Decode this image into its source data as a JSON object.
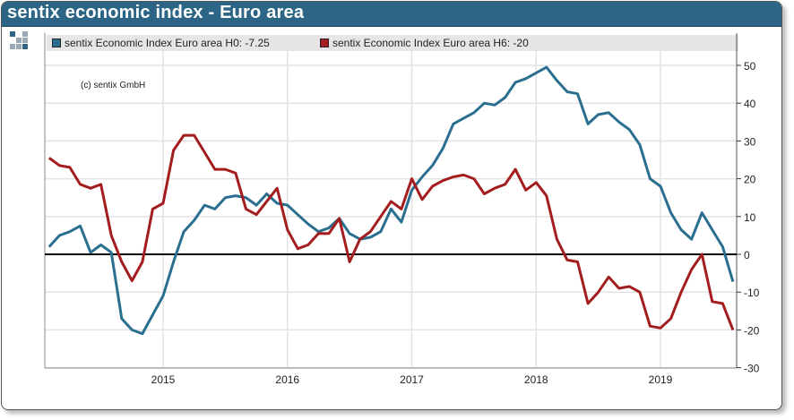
{
  "header": {
    "title": "sentix economic index - Euro area"
  },
  "copyright": "(c) sentix GmbH",
  "logo": {
    "colors": [
      "#2c6586",
      "#9aa9b5"
    ]
  },
  "colors": {
    "title_bar": "#2c6586",
    "h0": "#2a6f8f",
    "h6": "#a31d1f"
  },
  "chart_data": {
    "type": "line",
    "legend_placement": "top",
    "grid": true,
    "ylim": [
      -30,
      55
    ],
    "y_ticks": [
      "50",
      "40",
      "30",
      "20",
      "10",
      "0",
      "-10",
      "-20",
      "-30"
    ],
    "x_ticks": [
      "2015",
      "2016",
      "2017",
      "2018",
      "2019"
    ],
    "x": [
      "2014-02",
      "2014-03",
      "2014-04",
      "2014-05",
      "2014-06",
      "2014-07",
      "2014-08",
      "2014-09",
      "2014-10",
      "2014-11",
      "2014-12",
      "2015-01",
      "2015-02",
      "2015-03",
      "2015-04",
      "2015-05",
      "2015-06",
      "2015-07",
      "2015-08",
      "2015-09",
      "2015-10",
      "2015-11",
      "2015-12",
      "2016-01",
      "2016-02",
      "2016-03",
      "2016-04",
      "2016-05",
      "2016-06",
      "2016-07",
      "2016-08",
      "2016-09",
      "2016-10",
      "2016-11",
      "2016-12",
      "2017-01",
      "2017-02",
      "2017-03",
      "2017-04",
      "2017-05",
      "2017-06",
      "2017-07",
      "2017-08",
      "2017-09",
      "2017-10",
      "2017-11",
      "2017-12",
      "2018-01",
      "2018-02",
      "2018-03",
      "2018-04",
      "2018-05",
      "2018-06",
      "2018-07",
      "2018-08",
      "2018-09",
      "2018-10",
      "2018-11",
      "2018-12",
      "2019-01",
      "2019-02",
      "2019-03",
      "2019-04",
      "2019-05",
      "2019-06",
      "2019-07",
      "2019-08"
    ],
    "series": [
      {
        "name": "sentix Economic Index Euro area H0: -7.25",
        "color": "#2a6f8f",
        "values": [
          2,
          5,
          6,
          7.5,
          0.5,
          2.5,
          0.5,
          -17,
          -20,
          -21,
          -16,
          -11,
          -2,
          6,
          9,
          13,
          12,
          15,
          15.5,
          15,
          13,
          16,
          13.5,
          13,
          10.5,
          8,
          6,
          7,
          9.5,
          5.5,
          4,
          4.5,
          6,
          12,
          8.5,
          17,
          20.5,
          23.5,
          28,
          34.5,
          36,
          37.5,
          40,
          39.5,
          41.5,
          45.5,
          46.5,
          48,
          49.5,
          46,
          43,
          42.5,
          34.5,
          37,
          37.5,
          35,
          33,
          29,
          20,
          18,
          11,
          6.5,
          4,
          11,
          6.5,
          2,
          -7.25
        ]
      },
      {
        "name": "sentix Economic Index Euro area H6: -20",
        "color": "#a31d1f",
        "values": [
          25.5,
          23.5,
          23,
          18.5,
          17.5,
          18.5,
          5,
          -2,
          -7,
          -2,
          12,
          13.5,
          27.5,
          31.5,
          31.5,
          27,
          22.5,
          22.5,
          21.5,
          12,
          10.5,
          14,
          17.5,
          6.5,
          1.5,
          2.5,
          5.5,
          5.5,
          9.5,
          -2,
          4,
          6,
          10,
          14,
          12,
          20,
          14.5,
          18,
          19.5,
          20.5,
          21,
          20,
          16,
          17.5,
          18.5,
          22.5,
          17,
          19,
          15.5,
          4,
          -1.5,
          -2,
          -13,
          -10,
          -6,
          -9,
          -8.5,
          -10,
          -19,
          -19.5,
          -17,
          -10,
          -4,
          0,
          -12.5,
          -13,
          -20
        ]
      }
    ]
  }
}
